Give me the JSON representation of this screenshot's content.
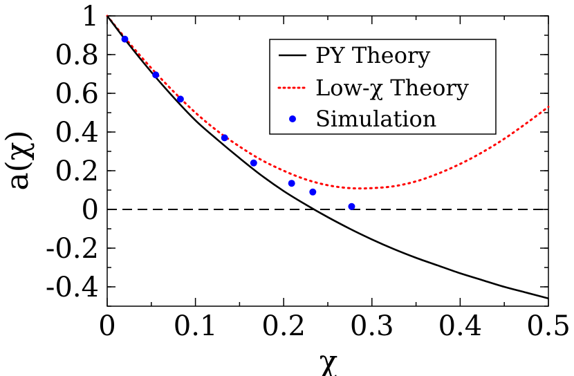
{
  "chart_data": {
    "type": "line",
    "title": "",
    "xlabel": "χ",
    "ylabel": "a(χ)",
    "xlim": [
      0,
      0.5
    ],
    "ylim": [
      -0.5,
      1
    ],
    "x_ticks": [
      0,
      0.1,
      0.2,
      0.3,
      0.4,
      0.5
    ],
    "x_tick_labels": [
      "0",
      "0.1",
      "0.2",
      "0.3",
      "0.4",
      "0.5"
    ],
    "y_ticks": [
      -0.4,
      -0.2,
      0,
      0.2,
      0.4,
      0.6,
      0.8,
      1
    ],
    "y_tick_labels": [
      "-0.4",
      "-0.2",
      "0",
      "0.2",
      "0.4",
      "0.6",
      "0.8",
      "1"
    ],
    "grid": false,
    "legend_position": "top-right",
    "series": [
      {
        "name": "PY Theory",
        "style": "solid",
        "color": "#000000",
        "x": [
          0,
          0.025,
          0.05,
          0.075,
          0.1,
          0.125,
          0.15,
          0.175,
          0.2,
          0.225,
          0.25,
          0.275,
          0.3,
          0.325,
          0.35,
          0.375,
          0.4,
          0.425,
          0.45,
          0.475,
          0.5
        ],
        "y": [
          1.0,
          0.85,
          0.71,
          0.58,
          0.46,
          0.36,
          0.265,
          0.175,
          0.095,
          0.025,
          -0.04,
          -0.1,
          -0.155,
          -0.205,
          -0.25,
          -0.29,
          -0.33,
          -0.365,
          -0.4,
          -0.43,
          -0.46
        ]
      },
      {
        "name": "Low-χ Theory",
        "style": "dotted",
        "color": "#ff0000",
        "x": [
          0,
          0.025,
          0.05,
          0.075,
          0.1,
          0.125,
          0.15,
          0.175,
          0.2,
          0.225,
          0.25,
          0.275,
          0.3,
          0.325,
          0.35,
          0.375,
          0.4,
          0.425,
          0.45,
          0.475,
          0.5
        ],
        "y": [
          1.0,
          0.86,
          0.73,
          0.61,
          0.5,
          0.405,
          0.325,
          0.255,
          0.2,
          0.155,
          0.125,
          0.11,
          0.11,
          0.12,
          0.145,
          0.185,
          0.235,
          0.295,
          0.365,
          0.445,
          0.53
        ]
      },
      {
        "name": "Simulation",
        "style": "markers",
        "color": "#0000ff",
        "x": [
          0.02,
          0.055,
          0.083,
          0.133,
          0.166,
          0.209,
          0.233,
          0.277
        ],
        "y": [
          0.88,
          0.695,
          0.57,
          0.37,
          0.24,
          0.135,
          0.09,
          0.015
        ]
      }
    ],
    "reference_lines": [
      {
        "axis": "y",
        "value": 0,
        "style": "dashed",
        "color": "#000000"
      }
    ]
  }
}
